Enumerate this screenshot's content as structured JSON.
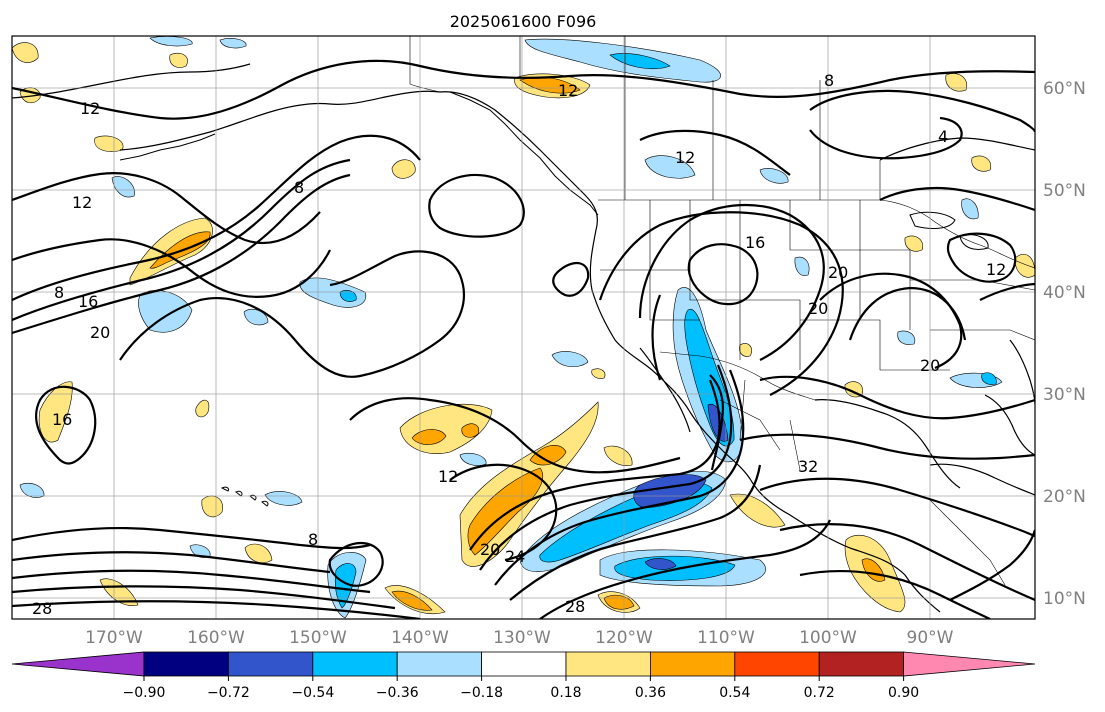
{
  "map": {
    "title": "2025061600 F096",
    "lon_labels": [
      "170°W",
      "160°W",
      "150°W",
      "140°W",
      "130°W",
      "120°W",
      "110°W",
      "100°W",
      "90°W"
    ],
    "lat_labels": [
      "60°N",
      "50°N",
      "40°N",
      "30°N",
      "20°N",
      "10°N"
    ],
    "contour_labels": [
      "12",
      "12",
      "8",
      "16",
      "20",
      "16",
      "8",
      "12",
      "8",
      "20",
      "24",
      "28",
      "28",
      "12",
      "16",
      "20",
      "20",
      "20",
      "32",
      "12",
      "8",
      "4",
      "12"
    ],
    "colors": {
      "neg_090": "#9933cc",
      "neg_072": "#000080",
      "neg_054": "#3355cc",
      "neg_036": "#00bfff",
      "neg_018": "#aadfff",
      "neutral": "#ffffff",
      "pos_018": "#ffe680",
      "pos_036": "#ffa500",
      "pos_054": "#ff4500",
      "pos_072": "#b22222",
      "pos_090": "#ff88b0"
    }
  },
  "colorbar": {
    "tick_labels": [
      "−0.90",
      "−0.72",
      "−0.54",
      "−0.36",
      "−0.18",
      "0.18",
      "0.36",
      "0.54",
      "0.72",
      "0.90"
    ]
  }
}
